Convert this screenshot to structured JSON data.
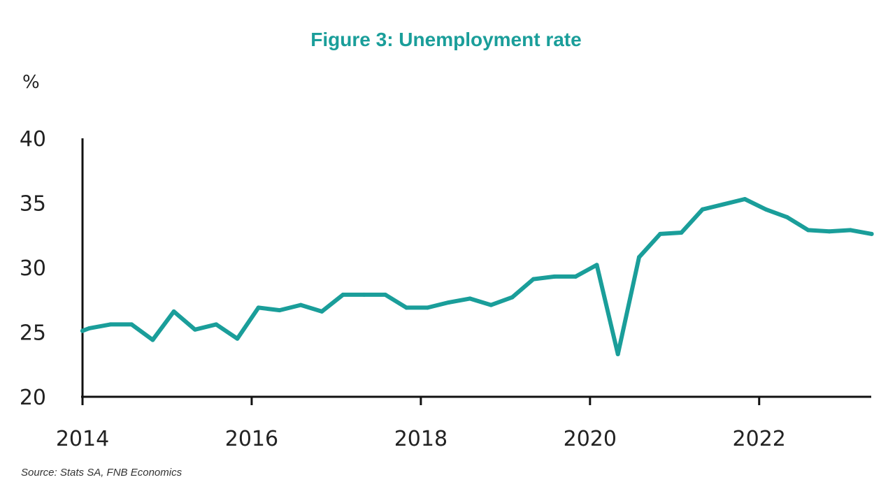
{
  "colors": {
    "accent": "#1a9e9a",
    "axis": "#111111"
  },
  "chart_data": {
    "type": "line",
    "title": "Figure 3: Unemployment rate",
    "ylabel": "%",
    "xlabel": "",
    "source": "Source: Stats SA, FNB Economics",
    "ylim": [
      20,
      40
    ],
    "xlim": [
      2014,
      2023.3
    ],
    "y_ticks": [
      "20",
      "25",
      "30",
      "35",
      "40"
    ],
    "x_ticks": [
      "2014",
      "2016",
      "2018",
      "2020",
      "2022"
    ],
    "grid": false,
    "legend": "none",
    "series": [
      {
        "x": [
          2014.0,
          2014.08,
          2014.33,
          2014.58,
          2014.83,
          2015.08,
          2015.33,
          2015.58,
          2015.83,
          2016.08,
          2016.33,
          2016.58,
          2016.83,
          2017.08,
          2017.33,
          2017.58,
          2017.83,
          2018.08,
          2018.33,
          2018.58,
          2018.83,
          2019.08,
          2019.33,
          2019.58,
          2019.83,
          2020.08,
          2020.33,
          2020.58,
          2020.83,
          2021.08,
          2021.33,
          2021.58,
          2021.83,
          2022.08,
          2022.33,
          2022.58,
          2022.83,
          2023.08,
          2023.33
        ],
        "values": [
          25.1,
          25.3,
          25.6,
          25.6,
          24.4,
          26.6,
          25.2,
          25.6,
          24.5,
          26.9,
          26.7,
          27.1,
          26.6,
          27.9,
          27.9,
          27.9,
          26.9,
          26.9,
          27.3,
          27.6,
          27.1,
          27.7,
          29.1,
          29.3,
          29.3,
          30.2,
          23.3,
          30.8,
          32.6,
          32.7,
          34.5,
          34.9,
          35.3,
          34.5,
          33.9,
          32.9,
          32.8,
          32.9,
          32.6
        ]
      }
    ]
  }
}
